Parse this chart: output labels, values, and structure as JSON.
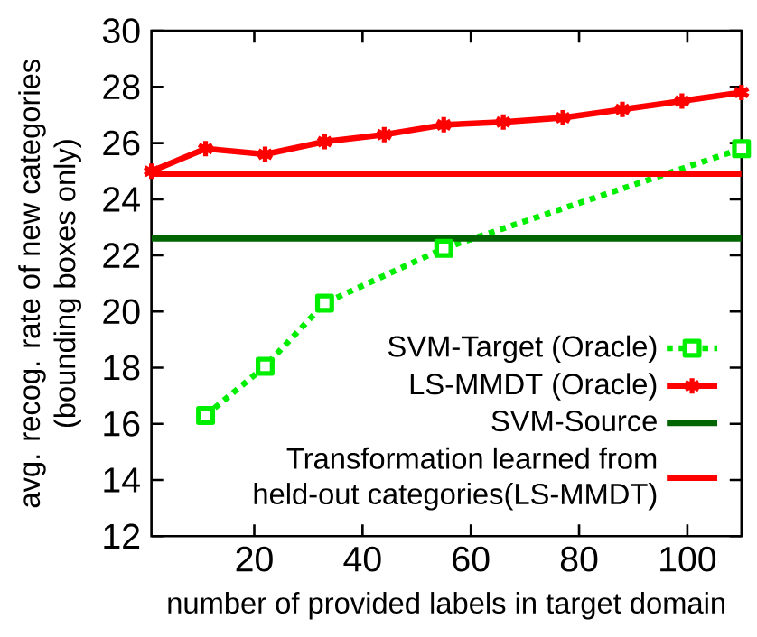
{
  "chart_data": {
    "type": "line",
    "xlabel": "number of provided labels in target domain",
    "ylabel": "avg. recog. rate of new categories\n(bounding boxes only)",
    "xlim": [
      1,
      110
    ],
    "ylim": [
      12,
      30
    ],
    "xticks": [
      20,
      40,
      60,
      80,
      100
    ],
    "yticks": [
      12,
      14,
      16,
      18,
      20,
      22,
      24,
      26,
      28,
      30
    ],
    "series": [
      {
        "name": "SVM-Target (Oracle)",
        "color": "#00ee00",
        "x": [
          11,
          22,
          33,
          55,
          110
        ],
        "values": [
          16.3,
          18.05,
          20.3,
          22.25,
          25.8
        ],
        "marker": "square",
        "line_style": "dotted"
      },
      {
        "name": "LS-MMDT (Oracle)",
        "color": "#ff0000",
        "x": [
          1,
          11,
          22,
          33,
          44,
          55,
          66,
          77,
          88,
          99,
          110
        ],
        "values": [
          25.0,
          25.8,
          25.6,
          26.05,
          26.3,
          26.65,
          26.75,
          26.9,
          27.2,
          27.5,
          27.8
        ],
        "marker": "cross",
        "line_style": "solid"
      },
      {
        "name": "SVM-Source",
        "color": "#006400",
        "x": [
          1,
          110
        ],
        "values": [
          22.6,
          22.6
        ],
        "marker": "none",
        "line_style": "solid"
      },
      {
        "name": "Transformation learned from\nheld-out categories(LS-MMDT)",
        "color": "#ff0000",
        "x": [
          1,
          110
        ],
        "values": [
          24.9,
          24.9
        ],
        "marker": "none",
        "line_style": "solid"
      }
    ],
    "legend": "bottom right",
    "grid": false
  }
}
